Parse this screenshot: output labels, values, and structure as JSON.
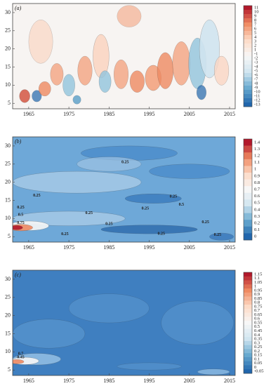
{
  "chart_data": [
    {
      "type": "contour",
      "label": "(a)",
      "xlim": [
        1961,
        2016.4
      ],
      "ylim": [
        3.5,
        32.5
      ],
      "xticks": [
        1965,
        1975,
        1985,
        1995,
        2005,
        2015
      ],
      "yticks": [
        5,
        10,
        15,
        20,
        25,
        30
      ],
      "colorbar": [
        11,
        10,
        9,
        8,
        7,
        6,
        5,
        4,
        3,
        2,
        1,
        -1,
        -2,
        -3,
        -4,
        -5,
        -6,
        -7,
        -8,
        -9,
        -10,
        -11,
        -12,
        -13
      ],
      "annotations": []
    },
    {
      "type": "contour",
      "label": "(b)",
      "xlim": [
        1961,
        2016.4
      ],
      "ylim": [
        3.5,
        32.5
      ],
      "xticks": [
        1965,
        1975,
        1985,
        1995,
        2005,
        2015
      ],
      "yticks": [
        5,
        10,
        15,
        20,
        25,
        30
      ],
      "colorbar": [
        1.4,
        1.3,
        1.2,
        1.1,
        1,
        0.9,
        0.8,
        0.7,
        0.6,
        0.5,
        0.4,
        0.3,
        0.2,
        0.1,
        0
      ],
      "annotations": [
        {
          "text": "0.25",
          "x": 1963,
          "y": 13
        },
        {
          "text": "0.5",
          "x": 1963,
          "y": 11
        },
        {
          "text": "0.75",
          "x": 1963,
          "y": 8.8
        },
        {
          "text": "0.25",
          "x": 1967,
          "y": 16.3
        },
        {
          "text": "0.25",
          "x": 1989,
          "y": 25.5
        },
        {
          "text": "0.25",
          "x": 1980,
          "y": 11.5
        },
        {
          "text": "0.25",
          "x": 1994,
          "y": 12.8
        },
        {
          "text": "0.25",
          "x": 2001,
          "y": 16
        },
        {
          "text": "0.5",
          "x": 2003,
          "y": 13.8
        },
        {
          "text": "0.25",
          "x": 1985,
          "y": 8.5
        },
        {
          "text": "0.25",
          "x": 2009,
          "y": 9
        },
        {
          "text": "0.25",
          "x": 1974,
          "y": 5.7
        },
        {
          "text": "0.25",
          "x": 1998,
          "y": 5.8
        },
        {
          "text": "0.25",
          "x": 2012,
          "y": 5.5
        }
      ]
    },
    {
      "type": "contour",
      "label": "(c)",
      "xlim": [
        1961,
        2016.4
      ],
      "ylim": [
        3.5,
        32.5
      ],
      "xticks": [
        1965,
        1975,
        1985,
        1995,
        2005,
        2015
      ],
      "yticks": [
        5,
        10,
        15,
        20,
        25,
        30
      ],
      "colorbar": [
        1.15,
        1.1,
        1.05,
        1,
        0.95,
        0.9,
        0.85,
        0.8,
        0.75,
        0.7,
        0.65,
        0.6,
        0.55,
        0.5,
        0.45,
        0.4,
        0.35,
        0.3,
        0.25,
        0.2,
        0.15,
        0.1,
        0.05,
        0,
        -0.05
      ],
      "annotations": [
        {
          "text": "0.7",
          "x": 1963,
          "y": 9.5
        },
        {
          "text": "0.45",
          "x": 1963,
          "y": 8.5
        }
      ]
    }
  ]
}
